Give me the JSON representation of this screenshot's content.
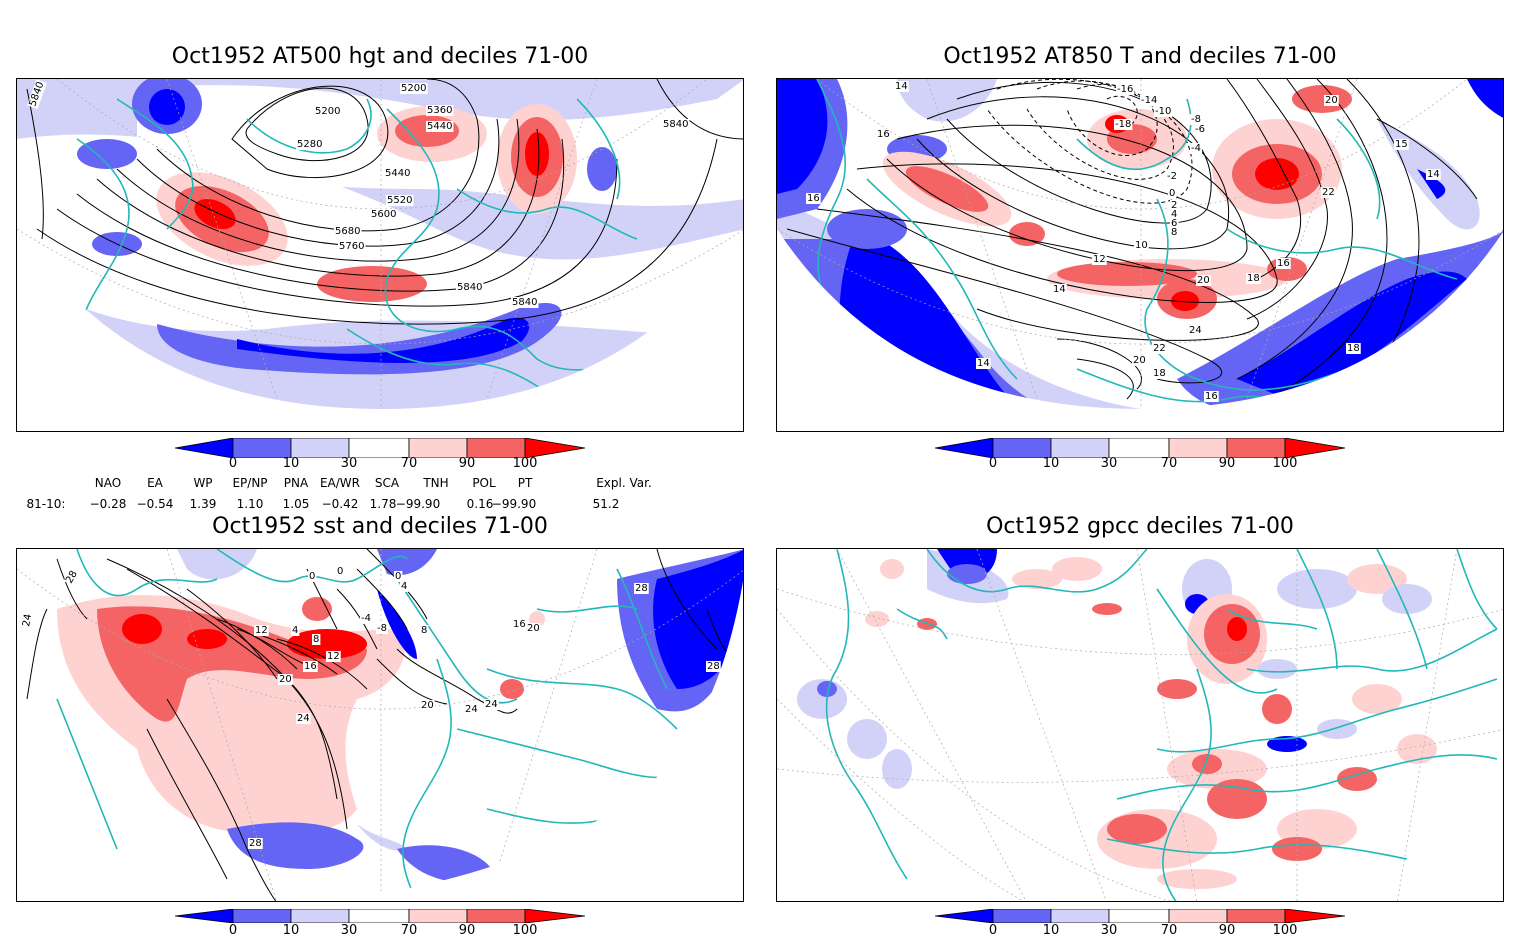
{
  "panels": [
    {
      "title": "Oct1952 AT500 hgt and deciles 71-00",
      "contour_labels": [
        "5840",
        "5200",
        "5200",
        "5360",
        "5440",
        "5280",
        "5440",
        "5520",
        "5600",
        "5680",
        "5760",
        "5840",
        "5840",
        "5840"
      ]
    },
    {
      "title": "Oct1952 AT850 T and deciles 71-00",
      "contour_labels": [
        "14",
        "-16",
        "-14",
        "-10",
        "-8",
        "-6",
        "-18",
        "-4",
        "-2",
        "0",
        "2",
        "4",
        "6",
        "8",
        "10",
        "12",
        "14",
        "16",
        "18",
        "20",
        "22",
        "24",
        "22",
        "20",
        "18",
        "16",
        "14",
        "16",
        "16",
        "15",
        "14",
        "18",
        "20"
      ]
    },
    {
      "title": "Oct1952 sst and deciles 71-00",
      "contour_labels": [
        "28",
        "24",
        "0",
        "0",
        "0",
        "4",
        "4",
        "8",
        "12",
        "12",
        "16",
        "20",
        "20",
        "24",
        "24",
        "24",
        "28",
        "28",
        "28",
        "16",
        "20",
        "8",
        "-4",
        "-8"
      ]
    },
    {
      "title": "Oct1952 gpcc deciles 71-00",
      "contour_labels": []
    }
  ],
  "colorbar": {
    "labels": [
      "0",
      "10",
      "30",
      "70",
      "90",
      "100"
    ],
    "colors": [
      "#0000ff",
      "#6464f5",
      "#d2d2f8",
      "#ffffff",
      "#ffd2d2",
      "#f56464",
      "#ff0000"
    ]
  },
  "indices": {
    "headers": [
      "NAO",
      "EA",
      "WP",
      "EP/NP",
      "PNA",
      "EA/WR",
      "SCA",
      "TNH",
      "POL",
      "PT",
      "Expl. Var."
    ],
    "row_label": "81-10:",
    "values": [
      "−0.28",
      "−0.54",
      "1.39",
      "1.10",
      "1.05",
      "−0.42",
      "1.78",
      "−99.90",
      "0.16",
      "−99.90",
      "51.2"
    ]
  },
  "colors": {
    "coastline": "#22b8b8",
    "contour": "#000000",
    "grid": "#aaaaaa"
  }
}
